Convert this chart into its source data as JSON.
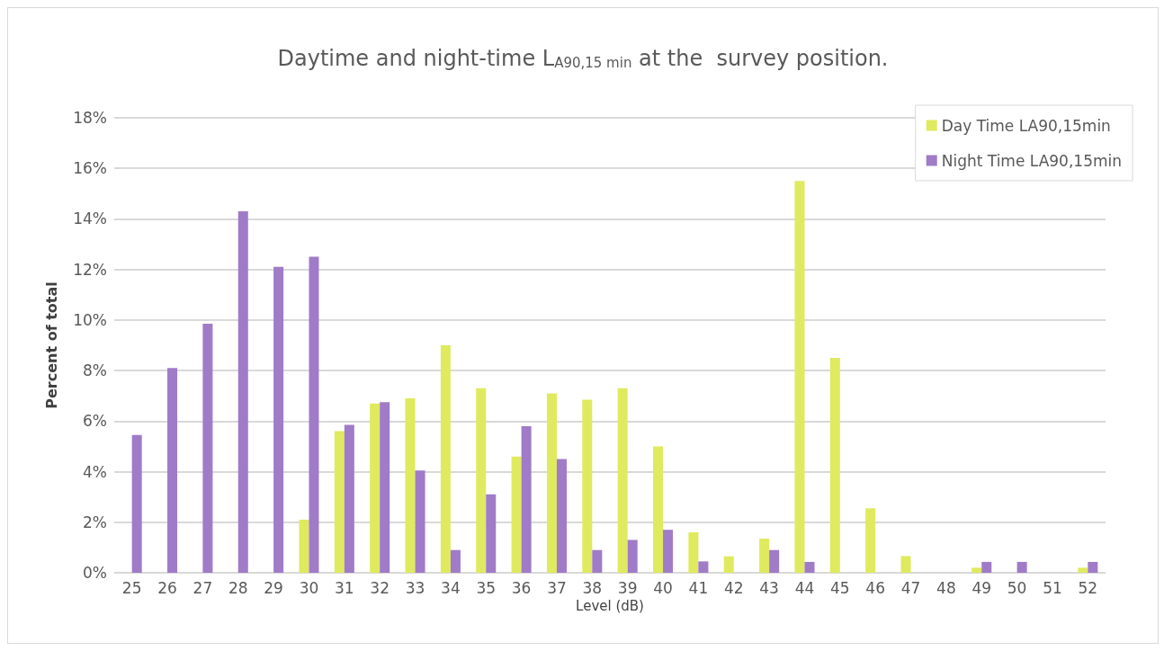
{
  "chart_data": {
    "type": "bar",
    "title": "Daytime and night-time L$_{A90,15 min}$ at the  survey position.",
    "xlabel": "Level (dB)",
    "ylabel": "Percent of total",
    "categories": [
      "25",
      "26",
      "27",
      "28",
      "29",
      "30",
      "31",
      "32",
      "33",
      "34",
      "35",
      "36",
      "37",
      "38",
      "39",
      "40",
      "41",
      "42",
      "43",
      "44",
      "45",
      "46",
      "47",
      "48",
      "49",
      "50",
      "51",
      "52"
    ],
    "series": [
      {
        "name": "Day Time LA90,15min",
        "color": "#dfea5e",
        "values": [
          0,
          0,
          0,
          0,
          0,
          2.1,
          5.6,
          6.7,
          6.9,
          9.0,
          7.3,
          4.6,
          7.1,
          6.85,
          7.3,
          5.0,
          1.6,
          0.65,
          1.35,
          15.5,
          8.5,
          2.55,
          0.66,
          0,
          0.2,
          0,
          0,
          0.2
        ]
      },
      {
        "name": "Night Time LA90,15min",
        "color": "#a07bc8",
        "values": [
          5.45,
          8.1,
          9.85,
          14.3,
          12.1,
          12.5,
          5.85,
          6.75,
          4.05,
          0.9,
          3.1,
          5.8,
          4.5,
          0.9,
          1.3,
          1.7,
          0.45,
          0,
          0.9,
          0.43,
          0,
          0,
          0,
          0,
          0.43,
          0.43,
          0,
          0.43
        ]
      }
    ],
    "ylim": [
      0,
      18
    ],
    "yticks": [
      {
        "value": 0,
        "label": "0%"
      },
      {
        "value": 2,
        "label": "2%"
      },
      {
        "value": 4,
        "label": "4%"
      },
      {
        "value": 6,
        "label": "6%"
      },
      {
        "value": 8,
        "label": "8%"
      },
      {
        "value": 10,
        "label": "10%"
      },
      {
        "value": 12,
        "label": "12%"
      },
      {
        "value": 14,
        "label": "14%"
      },
      {
        "value": 16,
        "label": "16%"
      },
      {
        "value": 18,
        "label": "18%"
      }
    ],
    "grid": "y",
    "legend": "top right"
  }
}
